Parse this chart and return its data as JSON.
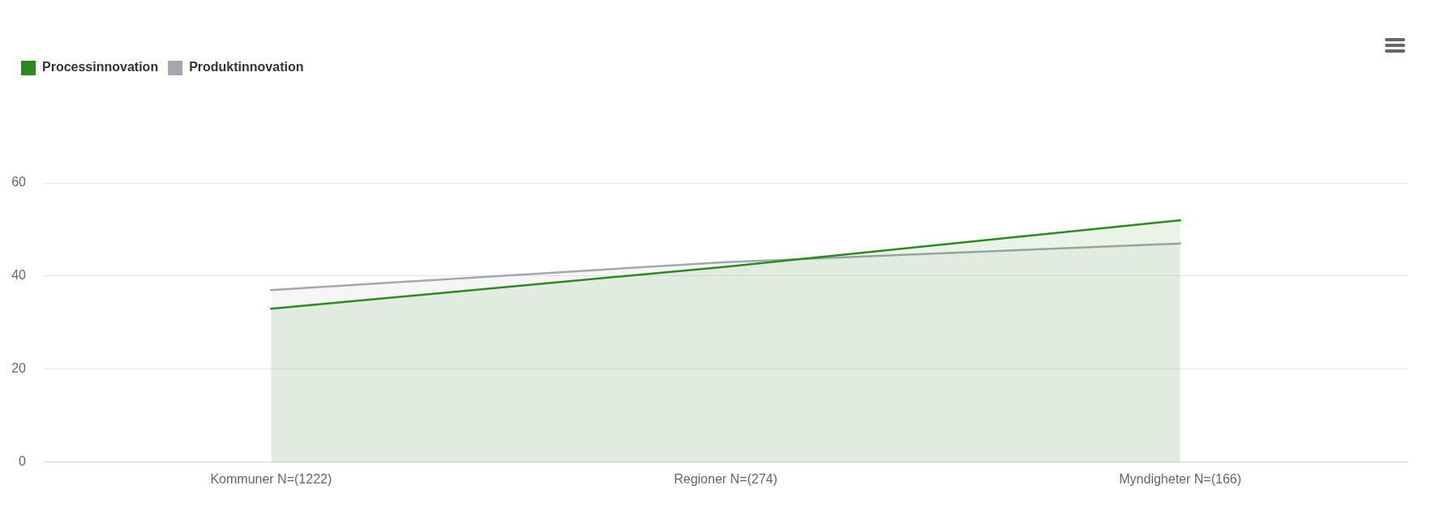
{
  "chart_data": {
    "type": "area",
    "categories": [
      "Kommuner N=(1222)",
      "Regioner N=(274)",
      "Myndigheter N=(166)"
    ],
    "series": [
      {
        "name": "Processinnovation",
        "color": "#2b8a1e",
        "values": [
          33,
          42,
          52
        ]
      },
      {
        "name": "Produktinnovation",
        "color": "#a3a7ae",
        "values": [
          37,
          43,
          47
        ]
      }
    ],
    "ylim": [
      0,
      60
    ],
    "yticks": [
      0,
      20,
      40,
      60
    ],
    "grid": "y",
    "legend": "top left"
  }
}
